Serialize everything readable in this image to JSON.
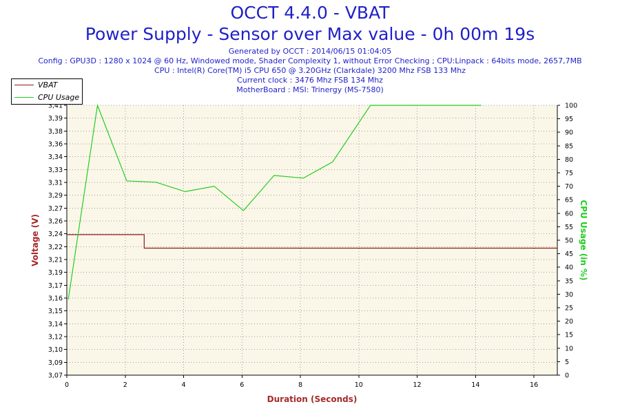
{
  "header": {
    "title": "OCCT 4.4.0 - VBAT",
    "subtitle": "Power Supply - Sensor over Max value - 0h 00m 19s",
    "info_lines": [
      "Generated by OCCT : 2014/06/15 01:04:05",
      "Config : GPU3D : 1280 x 1024 @ 60 Hz, Windowed mode, Shader Complexity 1, without Error Checking ; CPU:Linpack : 64bits mode, 2657,7MB",
      "CPU : Intel(R) Core(TM) i5 CPU 650 @ 3.20GHz (Clarkdale) 3200 Mhz FSB 133 Mhz",
      "Current clock : 3476 Mhz FSB 134 Mhz",
      "MotherBoard : MSI: Trinergy (MS-7580)"
    ]
  },
  "legend": {
    "items": [
      {
        "label": "VBAT",
        "color": "#8b1a1a"
      },
      {
        "label": "CPU Usage",
        "color": "#22cc22"
      }
    ]
  },
  "colors": {
    "vbat": "#8b1a1a",
    "cpu": "#22cc22",
    "plot_bg": "#fbf7e8",
    "grid": "#999999",
    "axis_label_left": "#a52a2a",
    "axis_label_right": "#22cc22",
    "xlabel": "#a52a2a"
  },
  "chart_data": {
    "type": "line",
    "title": "OCCT 4.4.0 - VBAT",
    "xlabel": "Duration (Seconds)",
    "ylabel": "Voltage (V)",
    "y2label": "CPU Usage (in %)",
    "xlim": [
      0,
      16.8
    ],
    "ylim": [
      3.07,
      3.41
    ],
    "y2lim": [
      0,
      100
    ],
    "x_ticks": [
      0,
      2,
      4,
      6,
      8,
      10,
      12,
      14,
      16
    ],
    "y_ticks": [
      "3,07",
      "3,09",
      "3,10",
      "3,12",
      "3,14",
      "3,15",
      "3,16",
      "3,17",
      "3,19",
      "3,21",
      "3,22",
      "3,24",
      "3,26",
      "3,27",
      "3,29",
      "3,31",
      "3,33",
      "3,34",
      "3,36",
      "3,38",
      "3,39",
      "3,41"
    ],
    "y2_ticks": [
      0,
      5,
      10,
      15,
      20,
      25,
      30,
      35,
      40,
      45,
      50,
      55,
      60,
      65,
      70,
      75,
      80,
      85,
      90,
      95,
      100
    ],
    "grid": true,
    "legend_position": "top-left",
    "series": [
      {
        "name": "VBAT",
        "axis": "left",
        "step": true,
        "x": [
          0,
          2.65,
          2.65,
          16.8
        ],
        "y": [
          3.247,
          3.247,
          3.23,
          3.23
        ]
      },
      {
        "name": "CPU Usage",
        "axis": "right",
        "step": false,
        "x": [
          0.05,
          1.05,
          2.05,
          3.05,
          4.05,
          5.05,
          6.05,
          7.1,
          8.1,
          9.1,
          10.4,
          14.2
        ],
        "y": [
          28,
          100,
          72,
          71.5,
          68,
          70,
          61,
          74,
          73,
          79,
          100,
          100
        ]
      }
    ]
  }
}
